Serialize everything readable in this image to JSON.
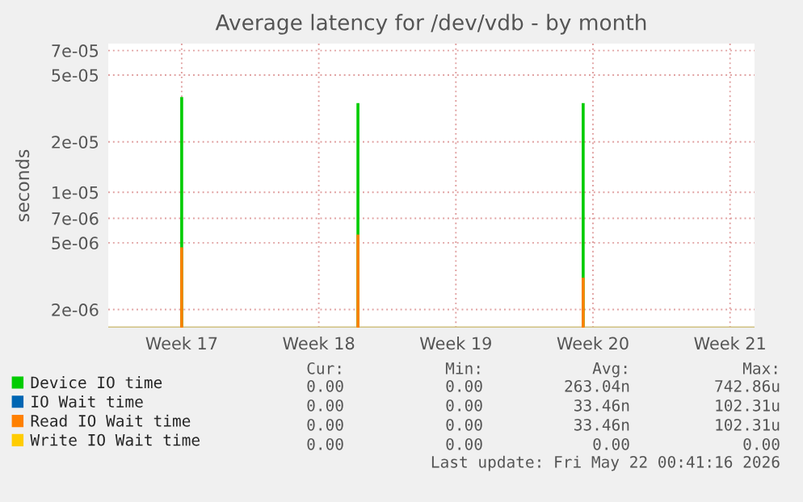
{
  "chart_data": {
    "type": "bar",
    "title": "Average latency for /dev/vdb - by month",
    "ylabel": "seconds",
    "log": "y",
    "ylim": [
      1.56e-06,
      7.7e-05
    ],
    "yticks": [
      2e-06,
      5e-06,
      7e-06,
      1e-05,
      2e-05,
      5e-05,
      7e-05
    ],
    "grid": true,
    "legend": "bottom",
    "categories": [
      null,
      null,
      null,
      null,
      null,
      null,
      null,
      "Week 17",
      null,
      null,
      null,
      null,
      null,
      null,
      null,
      null,
      null,
      null,
      null,
      null,
      null,
      "Week 18",
      null,
      null,
      null,
      null,
      null,
      null,
      null,
      null,
      null,
      null,
      null,
      null,
      null,
      "Week 19",
      null,
      null,
      null,
      null,
      null,
      null,
      null,
      null,
      null,
      null,
      null,
      null,
      null,
      "Week 20",
      null,
      null,
      null,
      null,
      null,
      null,
      null,
      null,
      null,
      null,
      null,
      null,
      null,
      "Week 21",
      null,
      null
    ],
    "series": [
      {
        "name": "Device IO time",
        "color": "#00cc00",
        "values": [
          null,
          null,
          null,
          null,
          null,
          null,
          null,
          3.7e-05,
          null,
          null,
          null,
          null,
          null,
          null,
          null,
          null,
          null,
          null,
          null,
          null,
          null,
          null,
          null,
          null,
          null,
          3.4e-05,
          null,
          null,
          null,
          null,
          null,
          null,
          null,
          null,
          null,
          null,
          null,
          null,
          null,
          null,
          null,
          null,
          null,
          null,
          null,
          null,
          null,
          null,
          3.4e-05,
          null,
          null,
          null,
          null,
          null,
          null,
          null,
          null,
          null,
          null,
          null,
          null,
          null,
          null,
          null,
          null,
          null
        ]
      },
      {
        "name": "IO Wait time",
        "color": "#0066b3",
        "values": [
          null,
          null,
          null,
          null,
          null,
          null,
          null,
          null,
          null,
          null,
          null,
          null,
          null,
          null,
          null,
          null,
          null,
          null,
          null,
          null,
          null,
          null,
          null,
          null,
          null,
          null,
          null,
          null,
          null,
          null,
          null,
          null,
          null,
          null,
          null,
          null,
          null,
          null,
          null,
          null,
          null,
          null,
          null,
          null,
          null,
          null,
          null,
          null,
          null,
          null,
          null,
          null,
          null,
          null,
          null,
          null,
          null,
          null,
          null,
          null,
          null,
          null,
          null,
          null,
          null,
          null
        ]
      },
      {
        "name": "Read IO Wait time",
        "color": "#ff8000",
        "values": [
          null,
          null,
          null,
          null,
          null,
          null,
          null,
          4.7e-06,
          null,
          null,
          null,
          null,
          null,
          null,
          null,
          null,
          null,
          null,
          null,
          null,
          null,
          null,
          null,
          null,
          null,
          5.6e-06,
          null,
          null,
          null,
          null,
          null,
          null,
          null,
          null,
          null,
          null,
          null,
          null,
          null,
          null,
          null,
          null,
          null,
          null,
          null,
          null,
          null,
          null,
          3.1e-06,
          null,
          null,
          null,
          null,
          null,
          null,
          null,
          null,
          null,
          null,
          null,
          null,
          null,
          null,
          null,
          null,
          null
        ]
      },
      {
        "name": "Write IO Wait time",
        "color": "#ffcc00",
        "values": [
          null,
          null,
          null,
          null,
          null,
          null,
          null,
          null,
          null,
          null,
          null,
          null,
          null,
          null,
          null,
          null,
          null,
          null,
          null,
          null,
          null,
          null,
          null,
          null,
          null,
          null,
          null,
          null,
          null,
          null,
          null,
          null,
          null,
          null,
          null,
          null,
          null,
          null,
          null,
          null,
          null,
          null,
          null,
          null,
          null,
          null,
          null,
          null,
          null,
          null,
          null,
          null,
          null,
          null,
          null,
          null,
          null,
          null,
          null,
          null,
          null,
          null,
          null,
          null,
          null,
          null
        ]
      }
    ],
    "annotations": [
      "Cur:",
      "Min:",
      "Avg:",
      "Max:",
      "0.00",
      "0.00",
      "263.04n",
      "742.86u",
      "0.00",
      "0.00",
      "33.46n",
      "102.31u",
      "0.00",
      "0.00",
      "33.46n",
      "102.31u",
      "0.00",
      "0.00",
      "0.00",
      "0.00",
      "Last update: Fri May 22 00:41:16 2026"
    ]
  }
}
